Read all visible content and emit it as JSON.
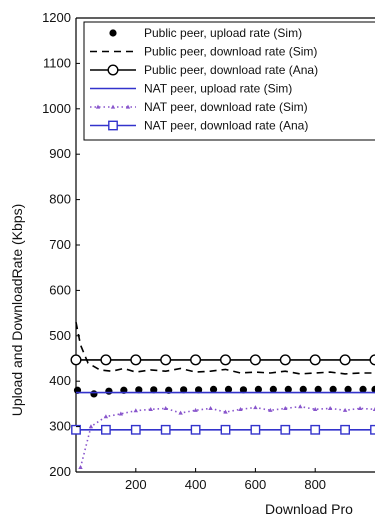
{
  "chart_data": {
    "type": "line",
    "xlabel": "Download Pro",
    "ylabel": "Upload and DownloadRate (Kbps)",
    "xlim": [
      0,
      1000
    ],
    "ylim": [
      200,
      1200
    ],
    "xticks": [
      200,
      400,
      600,
      800
    ],
    "yticks": [
      200,
      300,
      400,
      500,
      600,
      700,
      800,
      900,
      1000,
      1100,
      1200
    ],
    "grid": false,
    "legend_position": "top-right",
    "series": [
      {
        "name": "Public peer, upload rate (Sim)",
        "color": "#000000",
        "style": "markers",
        "marker": "filled-circle",
        "points": [
          [
            5,
            380
          ],
          [
            60,
            372
          ],
          [
            110,
            378
          ],
          [
            160,
            380
          ],
          [
            210,
            381
          ],
          [
            260,
            381
          ],
          [
            310,
            380
          ],
          [
            360,
            381
          ],
          [
            410,
            381
          ],
          [
            460,
            382
          ],
          [
            510,
            382
          ],
          [
            560,
            381
          ],
          [
            610,
            382
          ],
          [
            660,
            382
          ],
          [
            710,
            382
          ],
          [
            760,
            382
          ],
          [
            810,
            382
          ],
          [
            860,
            382
          ],
          [
            910,
            382
          ],
          [
            960,
            382
          ],
          [
            1000,
            382
          ]
        ]
      },
      {
        "name": "Public peer, download rate (Sim)",
        "color": "#000000",
        "style": "dashed",
        "marker": "none",
        "points": [
          [
            0,
            530
          ],
          [
            15,
            480
          ],
          [
            40,
            440
          ],
          [
            80,
            425
          ],
          [
            120,
            422
          ],
          [
            160,
            428
          ],
          [
            200,
            420
          ],
          [
            250,
            425
          ],
          [
            300,
            422
          ],
          [
            350,
            428
          ],
          [
            400,
            420
          ],
          [
            450,
            422
          ],
          [
            500,
            426
          ],
          [
            550,
            418
          ],
          [
            600,
            420
          ],
          [
            650,
            418
          ],
          [
            700,
            422
          ],
          [
            750,
            416
          ],
          [
            800,
            418
          ],
          [
            850,
            420
          ],
          [
            900,
            416
          ],
          [
            950,
            418
          ],
          [
            1000,
            418
          ]
        ]
      },
      {
        "name": "Public peer, download rate (Ana)",
        "color": "#000000",
        "style": "solid",
        "marker": "open-circle",
        "points": [
          [
            0,
            447
          ],
          [
            100,
            447
          ],
          [
            200,
            447
          ],
          [
            300,
            447
          ],
          [
            400,
            447
          ],
          [
            500,
            447
          ],
          [
            600,
            447
          ],
          [
            700,
            447
          ],
          [
            800,
            447
          ],
          [
            900,
            447
          ],
          [
            1000,
            447
          ]
        ]
      },
      {
        "name": "NAT peer, upload rate (Sim)",
        "color": "#3333cc",
        "style": "solid",
        "marker": "none",
        "points": [
          [
            0,
            375
          ],
          [
            100,
            375
          ],
          [
            200,
            375
          ],
          [
            300,
            375
          ],
          [
            400,
            375
          ],
          [
            500,
            375
          ],
          [
            600,
            375
          ],
          [
            700,
            375
          ],
          [
            800,
            375
          ],
          [
            900,
            375
          ],
          [
            1000,
            375
          ]
        ]
      },
      {
        "name": "NAT peer, download rate (Sim)",
        "color": "#8855cc",
        "style": "dotted",
        "marker": "small-triangle",
        "points": [
          [
            15,
            210
          ],
          [
            50,
            300
          ],
          [
            100,
            322
          ],
          [
            150,
            328
          ],
          [
            200,
            335
          ],
          [
            250,
            338
          ],
          [
            300,
            340
          ],
          [
            350,
            330
          ],
          [
            400,
            336
          ],
          [
            450,
            340
          ],
          [
            500,
            332
          ],
          [
            550,
            338
          ],
          [
            600,
            342
          ],
          [
            650,
            336
          ],
          [
            700,
            340
          ],
          [
            750,
            344
          ],
          [
            800,
            338
          ],
          [
            850,
            340
          ],
          [
            900,
            336
          ],
          [
            950,
            340
          ],
          [
            1000,
            338
          ]
        ]
      },
      {
        "name": "NAT peer, download rate (Ana)",
        "color": "#3333cc",
        "style": "solid",
        "marker": "open-square",
        "points": [
          [
            0,
            293
          ],
          [
            100,
            293
          ],
          [
            200,
            293
          ],
          [
            300,
            293
          ],
          [
            400,
            293
          ],
          [
            500,
            293
          ],
          [
            600,
            293
          ],
          [
            700,
            293
          ],
          [
            800,
            293
          ],
          [
            900,
            293
          ],
          [
            1000,
            293
          ]
        ]
      }
    ]
  }
}
